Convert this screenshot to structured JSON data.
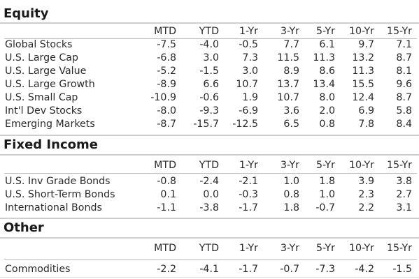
{
  "columns": [
    "MTD",
    "YTD",
    "1-Yr",
    "3-Yr",
    "5-Yr",
    "10-Yr",
    "15-Yr"
  ],
  "sections": [
    {
      "title": "Equity",
      "rows": [
        {
          "label": "Global Stocks",
          "values": [
            "-7.5",
            "-4.0",
            "-0.5",
            "7.7",
            "6.1",
            "9.7",
            "7.1"
          ]
        },
        {
          "label": "U.S. Large Cap",
          "values": [
            "-6.8",
            "3.0",
            "7.3",
            "11.5",
            "11.3",
            "13.2",
            "8.7"
          ]
        },
        {
          "label": "U.S. Large Value",
          "values": [
            "-5.2",
            "-1.5",
            "3.0",
            "8.9",
            "8.6",
            "11.3",
            "8.1"
          ]
        },
        {
          "label": "U.S. Large Growth",
          "values": [
            "-8.9",
            "6.6",
            "10.7",
            "13.7",
            "13.4",
            "15.5",
            "9.6"
          ]
        },
        {
          "label": "U.S. Small Cap",
          "values": [
            "-10.9",
            "-0.6",
            "1.9",
            "10.7",
            "8.0",
            "12.4",
            "8.7"
          ]
        },
        {
          "label": "Int'l Dev Stocks",
          "values": [
            "-8.0",
            "-9.3",
            "-6.9",
            "3.6",
            "2.0",
            "6.9",
            "5.8"
          ]
        },
        {
          "label": "Emerging Markets",
          "values": [
            "-8.7",
            "-15.7",
            "-12.5",
            "6.5",
            "0.8",
            "7.8",
            "8.4"
          ]
        }
      ]
    },
    {
      "title": "Fixed Income",
      "rows": [
        {
          "label": "U.S. Inv Grade Bonds",
          "values": [
            "-0.8",
            "-2.4",
            "-2.1",
            "1.0",
            "1.8",
            "3.9",
            "3.8"
          ]
        },
        {
          "label": "U.S. Short-Term Bonds",
          "values": [
            "0.1",
            "0.0",
            "-0.3",
            "0.8",
            "1.0",
            "2.3",
            "2.7"
          ]
        },
        {
          "label": "International Bonds",
          "values": [
            "-1.1",
            "-3.8",
            "-1.7",
            "1.8",
            "-0.7",
            "2.2",
            "3.1"
          ]
        }
      ]
    },
    {
      "title": "Other",
      "rows": [
        {
          "label": "Commodities",
          "values": [
            "-2.2",
            "-4.1",
            "-1.7",
            "-0.7",
            "-7.3",
            "-4.2",
            "-1.5"
          ]
        }
      ]
    }
  ]
}
